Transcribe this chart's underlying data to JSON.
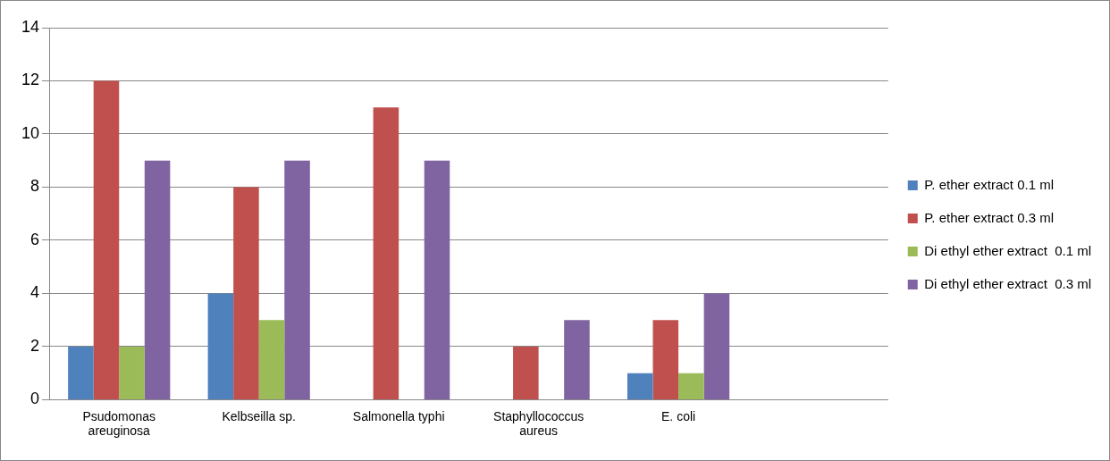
{
  "chart_data": {
    "type": "bar",
    "categories": [
      "Psudomonas areuginosa",
      "Kelbseilla sp.",
      "Salmonella typhi",
      "Staphyllococcus aureus",
      "E. coli",
      null
    ],
    "series": [
      {
        "name": "P. ether extract 0.1 ml",
        "color": "#4f81bd",
        "values": [
          2,
          4,
          0,
          0,
          1,
          null
        ]
      },
      {
        "name": "P. ether extract 0.3 ml",
        "color": "#c0504d",
        "values": [
          12,
          8,
          11,
          2,
          3,
          null
        ]
      },
      {
        "name": "Di ethyl ether extract  0.1 ml",
        "color": "#9bbb59",
        "values": [
          2,
          3,
          0,
          0,
          1,
          null
        ]
      },
      {
        "name": "Di ethyl ether extract  0.3 ml",
        "color": "#8064a2",
        "values": [
          9,
          9,
          9,
          3,
          4,
          null
        ]
      }
    ],
    "ylim": [
      0,
      14
    ],
    "yticks": [
      0,
      2,
      4,
      6,
      8,
      10,
      12,
      14
    ],
    "grid": "y",
    "legend": "right"
  }
}
